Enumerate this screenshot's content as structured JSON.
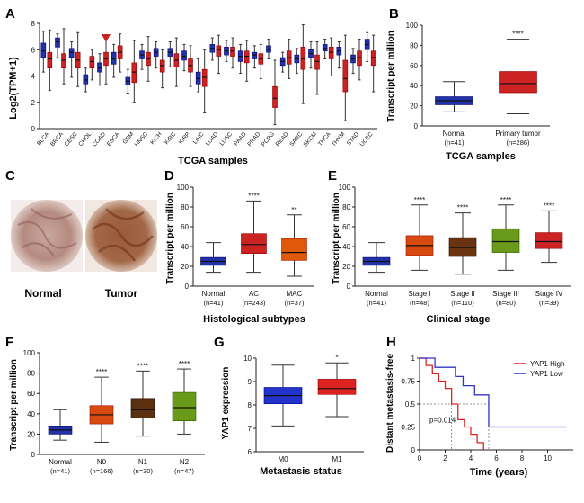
{
  "chart_data": [
    {
      "id": "A",
      "type": "box",
      "panel_label": "A",
      "xlabel": "TCGA samples",
      "ylabel": "Log2(TPM+1)",
      "ylim": [
        0,
        8
      ],
      "yticks": [
        0,
        2,
        4,
        6,
        8
      ],
      "categories": [
        "BLCA",
        "BRCA",
        "CESC",
        "CHOL",
        "COAD",
        "ESCA",
        "GBM",
        "HNSC",
        "KICH",
        "KIRC",
        "KIRP",
        "LIHC",
        "LUAD",
        "LUSC",
        "PAAD",
        "PRAD",
        "PCPG",
        "READ",
        "SARC",
        "SKCM",
        "THCA",
        "THYM",
        "STAD",
        "UCEC"
      ],
      "marker_category": "COAD",
      "series": [
        {
          "color": "#2233aa",
          "boxes": [
            [
              4.3,
              5.4,
              5.9,
              6.5,
              7.4
            ],
            [
              5.4,
              6.2,
              6.6,
              6.9,
              7.2
            ],
            [
              3.9,
              5.4,
              5.8,
              6.1,
              6.6
            ],
            [
              2.8,
              3.4,
              3.7,
              4.1,
              4.6
            ],
            [
              3.3,
              4.3,
              4.6,
              5.0,
              5.7
            ],
            [
              3.9,
              4.9,
              5.3,
              5.8,
              6.4
            ],
            [
              2.7,
              3.3,
              3.6,
              3.9,
              4.5
            ],
            [
              4.5,
              5.3,
              5.6,
              5.9,
              6.4
            ],
            [
              4.6,
              5.5,
              5.8,
              6.1,
              6.6
            ],
            [
              4.7,
              5.5,
              5.8,
              6.1,
              6.6
            ],
            [
              4.4,
              5.2,
              5.5,
              5.9,
              6.4
            ],
            [
              2.8,
              3.4,
              3.8,
              4.3,
              5.3
            ],
            [
              5.2,
              5.8,
              6.1,
              6.4,
              6.9
            ],
            [
              5.1,
              5.6,
              5.9,
              6.2,
              6.7
            ],
            [
              4.2,
              5.1,
              5.5,
              5.9,
              6.4
            ],
            [
              4.6,
              5.3,
              5.6,
              5.8,
              6.3
            ],
            [
              5.3,
              5.8,
              6.0,
              6.3,
              6.8
            ],
            [
              4.3,
              4.8,
              5.1,
              5.4,
              5.8
            ],
            [
              4.2,
              5.0,
              5.3,
              5.6,
              6.1
            ],
            [
              4.6,
              5.4,
              5.7,
              6.0,
              6.6
            ],
            [
              5.3,
              5.9,
              6.1,
              6.4,
              6.8
            ],
            [
              4.6,
              5.6,
              5.9,
              6.2,
              6.6
            ],
            [
              4.2,
              5.0,
              5.3,
              5.6,
              6.1
            ],
            [
              5.1,
              6.0,
              6.4,
              6.8,
              7.3
            ]
          ]
        },
        {
          "color": "#cc2222",
          "boxes": [
            [
              2.9,
              4.6,
              5.3,
              5.8,
              7.5
            ],
            [
              3.4,
              4.6,
              5.2,
              5.7,
              7.6
            ],
            [
              3.2,
              4.6,
              5.2,
              5.8,
              7.3
            ],
            [
              3.7,
              4.6,
              5.1,
              5.5,
              6.0
            ],
            [
              3.4,
              4.8,
              5.3,
              5.8,
              7.0
            ],
            [
              4.3,
              5.3,
              5.8,
              6.3,
              7.2
            ],
            [
              2.0,
              3.5,
              4.3,
              5.0,
              6.7
            ],
            [
              3.6,
              4.8,
              5.3,
              5.8,
              7.0
            ],
            [
              3.1,
              4.3,
              4.8,
              5.2,
              6.0
            ],
            [
              3.2,
              4.7,
              5.2,
              5.7,
              6.9
            ],
            [
              3.2,
              4.3,
              4.8,
              5.3,
              6.3
            ],
            [
              1.2,
              3.2,
              3.9,
              4.5,
              6.0
            ],
            [
              4.2,
              5.5,
              6.0,
              6.3,
              7.1
            ],
            [
              4.6,
              5.5,
              5.9,
              6.2,
              6.9
            ],
            [
              3.6,
              5.0,
              5.5,
              5.9,
              6.7
            ],
            [
              3.8,
              4.9,
              5.3,
              5.7,
              6.4
            ],
            [
              0.3,
              1.6,
              2.3,
              3.2,
              5.2
            ],
            [
              3.8,
              4.9,
              5.4,
              5.9,
              6.8
            ],
            [
              1.9,
              4.5,
              5.3,
              6.2,
              7.9
            ],
            [
              2.6,
              4.5,
              5.1,
              5.6,
              6.6
            ],
            [
              4.0,
              5.3,
              5.8,
              6.2,
              6.9
            ],
            [
              0.6,
              2.8,
              3.8,
              5.2,
              7.1
            ],
            [
              3.7,
              4.8,
              5.4,
              5.9,
              6.8
            ],
            [
              2.8,
              4.8,
              5.4,
              5.9,
              7.1
            ]
          ]
        }
      ]
    },
    {
      "id": "B",
      "type": "box",
      "panel_label": "B",
      "xlabel": "TCGA samples",
      "ylabel": "Transcript per million",
      "ylim": [
        0,
        100
      ],
      "yticks": [
        0,
        20,
        40,
        60,
        80,
        100
      ],
      "categories": [
        "Normal",
        "Primary tumor"
      ],
      "counts": [
        "(n=41)",
        "(n=286)"
      ],
      "significance": [
        "",
        "****"
      ],
      "colors": [
        "#2233aa",
        "#cc2222"
      ],
      "boxes": [
        [
          14,
          21,
          25,
          29,
          44
        ],
        [
          12,
          33,
          42,
          54,
          86
        ]
      ]
    },
    {
      "id": "D",
      "type": "box",
      "panel_label": "D",
      "xlabel": "Histological subtypes",
      "ylabel": "Transcript per million",
      "ylim": [
        0,
        100
      ],
      "yticks": [
        0,
        20,
        40,
        60,
        80,
        100
      ],
      "categories": [
        "Normal",
        "AC",
        "MAC"
      ],
      "counts": [
        "(n=41)",
        "(n=243)",
        "(n=37)"
      ],
      "significance": [
        "",
        "****",
        "**"
      ],
      "colors": [
        "#2233aa",
        "#cc2222",
        "#e0580a"
      ],
      "boxes": [
        [
          14,
          21,
          25,
          29,
          44
        ],
        [
          14,
          33,
          42,
          53,
          86
        ],
        [
          10,
          26,
          34,
          48,
          72
        ]
      ]
    },
    {
      "id": "E",
      "type": "box",
      "panel_label": "E",
      "xlabel": "Clinical stage",
      "ylabel": "Transcript per million",
      "ylim": [
        0,
        100
      ],
      "yticks": [
        0,
        20,
        40,
        60,
        80,
        100
      ],
      "categories": [
        "Normal",
        "Stage I",
        "Stage II",
        "Stage III",
        "Stage IV"
      ],
      "counts": [
        "(n=41)",
        "(n=48)",
        "(n=110)",
        "(n=80)",
        "(n=39)"
      ],
      "significance": [
        "",
        "****",
        "****",
        "****",
        "****"
      ],
      "colors": [
        "#2233aa",
        "#d84a10",
        "#6b3410",
        "#6a9a1a",
        "#cc2222"
      ],
      "boxes": [
        [
          14,
          21,
          25,
          29,
          44
        ],
        [
          16,
          31,
          41,
          51,
          82
        ],
        [
          12,
          30,
          39,
          49,
          74
        ],
        [
          16,
          34,
          45,
          58,
          82
        ],
        [
          24,
          38,
          45,
          54,
          76
        ]
      ]
    },
    {
      "id": "F",
      "type": "box",
      "panel_label": "F",
      "xlabel": "",
      "ylabel": "Transcript per million",
      "ylim": [
        0,
        100
      ],
      "yticks": [
        0,
        20,
        40,
        60,
        80,
        100
      ],
      "categories": [
        "Normal",
        "N0",
        "N1",
        "N2"
      ],
      "counts": [
        "(n=41)",
        "(n=166)",
        "(n=30)",
        "(n=47)"
      ],
      "significance": [
        "",
        "****",
        "****",
        "****"
      ],
      "colors": [
        "#2233aa",
        "#d84a10",
        "#5a300f",
        "#6a9a1a"
      ],
      "boxes": [
        [
          14,
          20,
          24,
          28,
          44
        ],
        [
          12,
          30,
          39,
          48,
          76
        ],
        [
          18,
          36,
          44,
          55,
          82
        ],
        [
          20,
          33,
          46,
          61,
          84
        ]
      ]
    },
    {
      "id": "G",
      "type": "box",
      "panel_label": "G",
      "xlabel": "Metastasis status",
      "ylabel": "YAP1 expression",
      "ylim": [
        6,
        10
      ],
      "yticks": [
        6,
        7,
        8,
        9,
        10
      ],
      "categories": [
        "M0",
        "M1"
      ],
      "significance": [
        "",
        "*"
      ],
      "colors": [
        "#2233cc",
        "#dd2222"
      ],
      "boxes": [
        [
          7.1,
          8.05,
          8.4,
          8.75,
          9.7
        ],
        [
          7.5,
          8.45,
          8.7,
          9.1,
          9.8
        ]
      ]
    },
    {
      "id": "H",
      "type": "line",
      "panel_label": "H",
      "xlabel": "Time (years)",
      "ylabel": "Distant metastasis-free",
      "xlim": [
        0,
        12
      ],
      "ylim": [
        0,
        1
      ],
      "xticks": [
        0,
        2,
        4,
        6,
        8,
        10
      ],
      "yticks": [
        0,
        0.25,
        0.5,
        0.75,
        1
      ],
      "ytick_labels": [
        "0",
        "0.25",
        "0.5",
        "0.75",
        "1"
      ],
      "annotation": "p=0.014",
      "series": [
        {
          "name": "YAP1 High",
          "color": "#dd2222",
          "x": [
            0,
            0.5,
            1.0,
            1.5,
            2.0,
            2.5,
            3.0,
            3.5,
            4.0,
            4.5,
            5.0
          ],
          "y": [
            1,
            0.92,
            0.83,
            0.75,
            0.67,
            0.5,
            0.33,
            0.25,
            0.17,
            0.08,
            0
          ]
        },
        {
          "name": "YAP1 Low",
          "color": "#3333cc",
          "x": [
            0,
            1.2,
            2.8,
            3.4,
            4.3,
            5.4,
            11.5
          ],
          "y": [
            1,
            0.9,
            0.8,
            0.7,
            0.6,
            0.25,
            0.25
          ]
        }
      ]
    }
  ],
  "ihc": {
    "panel_label": "C",
    "normal_label": "Normal",
    "tumor_label": "Tumor"
  }
}
